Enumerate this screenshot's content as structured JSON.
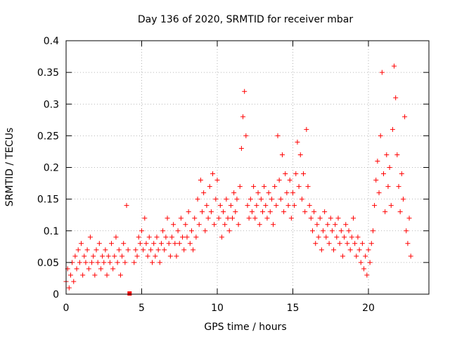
{
  "chart_data": {
    "type": "scatter",
    "title": "Day 136 of 2020, SRMTID for receiver mbar",
    "xlabel": "GPS time / hours",
    "ylabel": "SRMTID / TECUs",
    "xlim": [
      0,
      24
    ],
    "ylim": [
      0,
      0.4
    ],
    "grid": true,
    "marker": "+",
    "color": "#ff0000",
    "x_ticks": [
      "0",
      "5",
      "10",
      "15",
      "20"
    ],
    "x_tick_values": [
      0,
      5,
      10,
      15,
      20
    ],
    "y_ticks": [
      "0",
      "0.05",
      "0.1",
      "0.15",
      "0.2",
      "0.25",
      "0.3",
      "0.35",
      "0.4"
    ],
    "y_tick_values": [
      0,
      0.05,
      0.1,
      0.15,
      0.2,
      0.25,
      0.3,
      0.35,
      0.4
    ],
    "gap_marker": {
      "x": 4.2,
      "y": 0.0
    },
    "series": [
      {
        "name": "SRMTID",
        "points": [
          [
            0.0,
            0.02
          ],
          [
            0.1,
            0.04
          ],
          [
            0.2,
            0.01
          ],
          [
            0.3,
            0.03
          ],
          [
            0.4,
            0.05
          ],
          [
            0.5,
            0.02
          ],
          [
            0.6,
            0.06
          ],
          [
            0.7,
            0.04
          ],
          [
            0.8,
            0.07
          ],
          [
            0.9,
            0.05
          ],
          [
            1.0,
            0.08
          ],
          [
            1.1,
            0.03
          ],
          [
            1.2,
            0.06
          ],
          [
            1.3,
            0.05
          ],
          [
            1.4,
            0.07
          ],
          [
            1.5,
            0.04
          ],
          [
            1.6,
            0.09
          ],
          [
            1.7,
            0.05
          ],
          [
            1.8,
            0.06
          ],
          [
            1.9,
            0.03
          ],
          [
            2.0,
            0.07
          ],
          [
            2.1,
            0.05
          ],
          [
            2.2,
            0.08
          ],
          [
            2.3,
            0.04
          ],
          [
            2.4,
            0.06
          ],
          [
            2.5,
            0.05
          ],
          [
            2.6,
            0.07
          ],
          [
            2.7,
            0.03
          ],
          [
            2.8,
            0.06
          ],
          [
            2.9,
            0.05
          ],
          [
            3.0,
            0.08
          ],
          [
            3.1,
            0.04
          ],
          [
            3.2,
            0.06
          ],
          [
            3.3,
            0.09
          ],
          [
            3.4,
            0.05
          ],
          [
            3.5,
            0.07
          ],
          [
            3.6,
            0.03
          ],
          [
            3.7,
            0.06
          ],
          [
            3.8,
            0.08
          ],
          [
            3.9,
            0.05
          ],
          [
            4.0,
            0.14
          ],
          [
            4.1,
            0.07
          ],
          [
            4.5,
            0.05
          ],
          [
            4.6,
            0.07
          ],
          [
            4.7,
            0.06
          ],
          [
            4.8,
            0.09
          ],
          [
            4.9,
            0.08
          ],
          [
            5.0,
            0.1
          ],
          [
            5.1,
            0.07
          ],
          [
            5.2,
            0.12
          ],
          [
            5.3,
            0.08
          ],
          [
            5.4,
            0.06
          ],
          [
            5.5,
            0.09
          ],
          [
            5.6,
            0.07
          ],
          [
            5.7,
            0.05
          ],
          [
            5.8,
            0.08
          ],
          [
            5.9,
            0.06
          ],
          [
            6.0,
            0.09
          ],
          [
            6.1,
            0.07
          ],
          [
            6.2,
            0.05
          ],
          [
            6.3,
            0.08
          ],
          [
            6.4,
            0.1
          ],
          [
            6.5,
            0.07
          ],
          [
            6.6,
            0.09
          ],
          [
            6.7,
            0.12
          ],
          [
            6.8,
            0.08
          ],
          [
            6.9,
            0.06
          ],
          [
            7.0,
            0.09
          ],
          [
            7.1,
            0.11
          ],
          [
            7.2,
            0.08
          ],
          [
            7.3,
            0.06
          ],
          [
            7.4,
            0.1
          ],
          [
            7.5,
            0.08
          ],
          [
            7.6,
            0.12
          ],
          [
            7.7,
            0.09
          ],
          [
            7.8,
            0.07
          ],
          [
            7.9,
            0.11
          ],
          [
            8.0,
            0.09
          ],
          [
            8.1,
            0.13
          ],
          [
            8.2,
            0.08
          ],
          [
            8.3,
            0.1
          ],
          [
            8.4,
            0.07
          ],
          [
            8.5,
            0.12
          ],
          [
            8.6,
            0.09
          ],
          [
            8.7,
            0.15
          ],
          [
            8.8,
            0.11
          ],
          [
            8.9,
            0.18
          ],
          [
            9.0,
            0.13
          ],
          [
            9.1,
            0.16
          ],
          [
            9.2,
            0.1
          ],
          [
            9.3,
            0.14
          ],
          [
            9.4,
            0.12
          ],
          [
            9.5,
            0.17
          ],
          [
            9.6,
            0.13
          ],
          [
            9.7,
            0.19
          ],
          [
            9.8,
            0.11
          ],
          [
            9.9,
            0.15
          ],
          [
            10.0,
            0.18
          ],
          [
            10.1,
            0.12
          ],
          [
            10.2,
            0.14
          ],
          [
            10.3,
            0.09
          ],
          [
            10.4,
            0.13
          ],
          [
            10.5,
            0.11
          ],
          [
            10.6,
            0.15
          ],
          [
            10.7,
            0.12
          ],
          [
            10.8,
            0.1
          ],
          [
            10.9,
            0.14
          ],
          [
            11.0,
            0.12
          ],
          [
            11.1,
            0.16
          ],
          [
            11.2,
            0.13
          ],
          [
            11.3,
            0.15
          ],
          [
            11.4,
            0.11
          ],
          [
            11.5,
            0.17
          ],
          [
            11.6,
            0.23
          ],
          [
            11.7,
            0.28
          ],
          [
            11.8,
            0.32
          ],
          [
            11.9,
            0.25
          ],
          [
            12.0,
            0.14
          ],
          [
            12.1,
            0.12
          ],
          [
            12.2,
            0.15
          ],
          [
            12.3,
            0.13
          ],
          [
            12.4,
            0.17
          ],
          [
            12.5,
            0.12
          ],
          [
            12.6,
            0.14
          ],
          [
            12.7,
            0.16
          ],
          [
            12.8,
            0.11
          ],
          [
            12.9,
            0.15
          ],
          [
            13.0,
            0.13
          ],
          [
            13.1,
            0.17
          ],
          [
            13.2,
            0.14
          ],
          [
            13.3,
            0.12
          ],
          [
            13.4,
            0.16
          ],
          [
            13.5,
            0.13
          ],
          [
            13.6,
            0.15
          ],
          [
            13.7,
            0.11
          ],
          [
            13.8,
            0.17
          ],
          [
            13.9,
            0.14
          ],
          [
            14.0,
            0.25
          ],
          [
            14.1,
            0.18
          ],
          [
            14.2,
            0.15
          ],
          [
            14.3,
            0.22
          ],
          [
            14.4,
            0.13
          ],
          [
            14.5,
            0.19
          ],
          [
            14.6,
            0.16
          ],
          [
            14.7,
            0.14
          ],
          [
            14.8,
            0.18
          ],
          [
            14.9,
            0.12
          ],
          [
            15.0,
            0.16
          ],
          [
            15.1,
            0.14
          ],
          [
            15.2,
            0.19
          ],
          [
            15.3,
            0.24
          ],
          [
            15.4,
            0.17
          ],
          [
            15.5,
            0.22
          ],
          [
            15.6,
            0.15
          ],
          [
            15.7,
            0.19
          ],
          [
            15.8,
            0.13
          ],
          [
            15.9,
            0.26
          ],
          [
            16.0,
            0.17
          ],
          [
            16.1,
            0.14
          ],
          [
            16.2,
            0.12
          ],
          [
            16.3,
            0.1
          ],
          [
            16.4,
            0.13
          ],
          [
            16.5,
            0.08
          ],
          [
            16.6,
            0.11
          ],
          [
            16.7,
            0.09
          ],
          [
            16.8,
            0.12
          ],
          [
            16.9,
            0.07
          ],
          [
            17.0,
            0.1
          ],
          [
            17.1,
            0.13
          ],
          [
            17.2,
            0.09
          ],
          [
            17.3,
            0.11
          ],
          [
            17.4,
            0.08
          ],
          [
            17.5,
            0.12
          ],
          [
            17.6,
            0.1
          ],
          [
            17.7,
            0.07
          ],
          [
            17.8,
            0.11
          ],
          [
            17.9,
            0.09
          ],
          [
            18.0,
            0.12
          ],
          [
            18.1,
            0.08
          ],
          [
            18.2,
            0.1
          ],
          [
            18.3,
            0.06
          ],
          [
            18.4,
            0.09
          ],
          [
            18.5,
            0.11
          ],
          [
            18.6,
            0.08
          ],
          [
            18.7,
            0.1
          ],
          [
            18.8,
            0.07
          ],
          [
            18.9,
            0.09
          ],
          [
            19.0,
            0.12
          ],
          [
            19.1,
            0.08
          ],
          [
            19.2,
            0.06
          ],
          [
            19.3,
            0.09
          ],
          [
            19.4,
            0.07
          ],
          [
            19.5,
            0.05
          ],
          [
            19.6,
            0.08
          ],
          [
            19.7,
            0.04
          ],
          [
            19.8,
            0.06
          ],
          [
            19.9,
            0.03
          ],
          [
            20.0,
            0.07
          ],
          [
            20.1,
            0.05
          ],
          [
            20.2,
            0.08
          ],
          [
            20.3,
            0.1
          ],
          [
            20.4,
            0.14
          ],
          [
            20.5,
            0.18
          ],
          [
            20.6,
            0.21
          ],
          [
            20.7,
            0.16
          ],
          [
            20.8,
            0.25
          ],
          [
            20.9,
            0.35
          ],
          [
            21.0,
            0.19
          ],
          [
            21.1,
            0.13
          ],
          [
            21.2,
            0.22
          ],
          [
            21.3,
            0.17
          ],
          [
            21.4,
            0.2
          ],
          [
            21.5,
            0.14
          ],
          [
            21.6,
            0.26
          ],
          [
            21.7,
            0.36
          ],
          [
            21.8,
            0.31
          ],
          [
            21.9,
            0.22
          ],
          [
            22.0,
            0.17
          ],
          [
            22.1,
            0.13
          ],
          [
            22.2,
            0.19
          ],
          [
            22.3,
            0.15
          ],
          [
            22.4,
            0.28
          ],
          [
            22.5,
            0.1
          ],
          [
            22.6,
            0.08
          ],
          [
            22.7,
            0.12
          ],
          [
            22.8,
            0.06
          ]
        ]
      }
    ]
  }
}
